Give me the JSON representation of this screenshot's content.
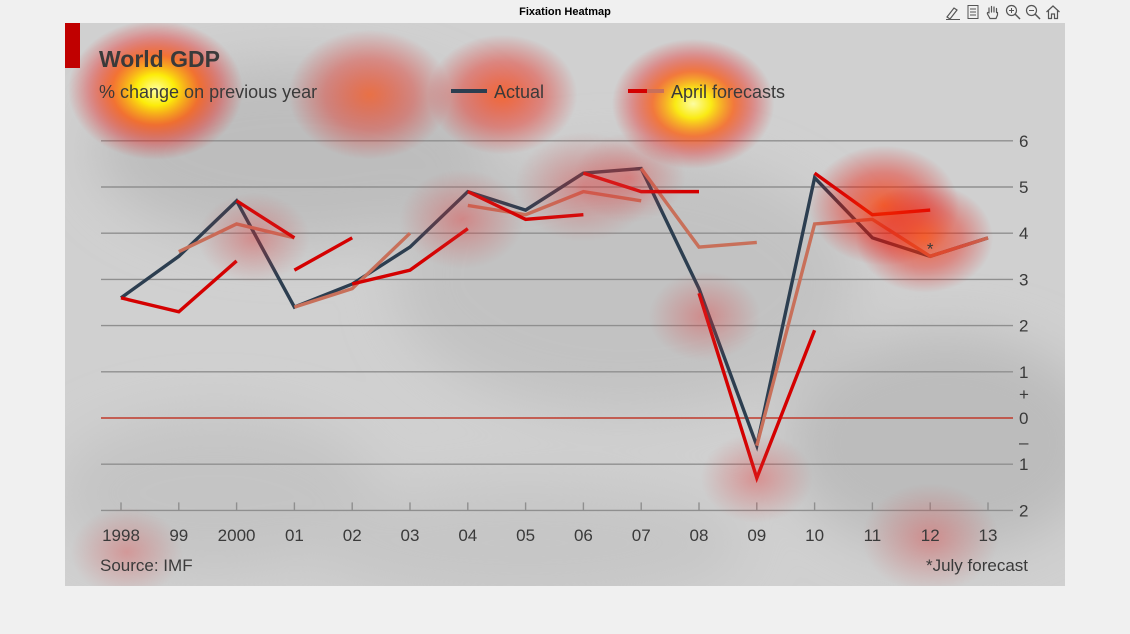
{
  "window": {
    "title": "Fixation Heatmap"
  },
  "toolbar": {
    "tools": [
      {
        "name": "edit-plot-icon"
      },
      {
        "name": "insert-legend-icon"
      },
      {
        "name": "pan-hand-icon"
      },
      {
        "name": "zoom-in-icon"
      },
      {
        "name": "zoom-out-icon"
      },
      {
        "name": "home-icon"
      }
    ]
  },
  "chart_data": {
    "type": "line",
    "title": "World GDP",
    "subtitle": "% change on previous year",
    "source": "Source: IMF",
    "footnote": "*July forecast",
    "x_labels": [
      "1998",
      "99",
      "2000",
      "01",
      "02",
      "03",
      "04",
      "05",
      "06",
      "07",
      "08",
      "09",
      "10",
      "11",
      "12",
      "13"
    ],
    "ylim": [
      -2,
      6
    ],
    "y_ticks": [
      {
        "value": 6,
        "label": "6"
      },
      {
        "value": 5,
        "label": "5"
      },
      {
        "value": 4,
        "label": "4"
      },
      {
        "value": 3,
        "label": "3"
      },
      {
        "value": 2,
        "label": "2"
      },
      {
        "value": 1,
        "label": "1"
      },
      {
        "value": 0,
        "label": "0"
      },
      {
        "value": -1,
        "label": "1"
      },
      {
        "value": -2,
        "label": "2"
      }
    ],
    "sign_labels": {
      "plus": "+",
      "minus": "–"
    },
    "legend": {
      "actual": "Actual",
      "forecast": "April forecasts"
    },
    "colors": {
      "actual": "#2c3e50",
      "forecast": "#d40000",
      "forecast_july": "#c8705a",
      "zero_line": "#c0392b",
      "accent": "#c00000",
      "background": "#d0d0d0"
    },
    "series": [
      {
        "name": "Actual",
        "years": [
          1998,
          1999,
          2000,
          2001,
          2002,
          2003,
          2004,
          2005,
          2006,
          2007,
          2008,
          2009,
          2010,
          2011,
          2012,
          2013
        ],
        "values": [
          2.6,
          3.5,
          4.7,
          2.4,
          2.9,
          3.7,
          4.9,
          4.5,
          5.3,
          5.4,
          2.8,
          -0.6,
          5.2,
          3.9,
          3.5,
          3.9
        ]
      },
      {
        "name": "April forecasts",
        "segments": [
          {
            "years": [
              1998,
              1999,
              2000
            ],
            "values": [
              2.6,
              2.3,
              3.4
            ]
          },
          {
            "years": [
              2000,
              2001
            ],
            "values": [
              4.7,
              3.9
            ]
          },
          {
            "years": [
              2001,
              2002
            ],
            "values": [
              3.2,
              3.9
            ]
          },
          {
            "years": [
              2002,
              2003,
              2004
            ],
            "values": [
              2.9,
              3.2,
              4.1
            ]
          },
          {
            "years": [
              2004,
              2005,
              2006
            ],
            "values": [
              4.9,
              4.3,
              4.4
            ]
          },
          {
            "years": [
              2006,
              2007,
              2008
            ],
            "values": [
              5.3,
              4.9,
              4.9
            ]
          },
          {
            "years": [
              2008,
              2009,
              2010
            ],
            "values": [
              2.7,
              -1.3,
              1.9
            ]
          },
          {
            "years": [
              2010,
              2011,
              2012
            ],
            "values": [
              5.3,
              4.4,
              4.5
            ]
          }
        ]
      },
      {
        "name": "*July forecast",
        "segments": [
          {
            "years": [
              1999,
              2000,
              2001
            ],
            "values": [
              3.6,
              4.2,
              3.9
            ]
          },
          {
            "years": [
              2001,
              2002,
              2003
            ],
            "values": [
              2.4,
              2.8,
              4.0
            ]
          },
          {
            "years": [
              2004,
              2005,
              2006,
              2007
            ],
            "values": [
              4.6,
              4.4,
              4.9,
              4.7
            ]
          },
          {
            "years": [
              2007,
              2008,
              2009
            ],
            "values": [
              5.4,
              3.7,
              3.8
            ]
          },
          {
            "years": [
              2009,
              2010,
              2011,
              2012,
              2013
            ],
            "values": [
              -0.6,
              4.2,
              4.3,
              3.5,
              3.9
            ]
          }
        ]
      }
    ],
    "annotation": {
      "year": 2012,
      "value": 3.8,
      "text": "*"
    },
    "heatmap_fixations": [
      {
        "year": 1998.6,
        "value": 7.1,
        "intensity": 1.0,
        "radius": 70
      },
      {
        "year": 2002.3,
        "value": 7.0,
        "intensity": 0.55,
        "radius": 65
      },
      {
        "year": 2004.6,
        "value": 7.0,
        "intensity": 0.75,
        "radius": 60
      },
      {
        "year": 2007.9,
        "value": 6.8,
        "intensity": 0.9,
        "radius": 65
      },
      {
        "year": 2011.2,
        "value": 4.6,
        "intensity": 0.8,
        "radius": 60
      },
      {
        "year": 2011.9,
        "value": 3.9,
        "intensity": 0.7,
        "radius": 55
      },
      {
        "year": 2000.3,
        "value": 3.9,
        "intensity": 0.35,
        "radius": 45
      },
      {
        "year": 2003.9,
        "value": 4.3,
        "intensity": 0.4,
        "radius": 50
      },
      {
        "year": 2006.0,
        "value": 5.0,
        "intensity": 0.4,
        "radius": 55
      },
      {
        "year": 2006.8,
        "value": 5.2,
        "intensity": 0.4,
        "radius": 45
      },
      {
        "year": 2008.1,
        "value": 2.2,
        "intensity": 0.35,
        "radius": 45
      },
      {
        "year": 2009.0,
        "value": -1.3,
        "intensity": 0.35,
        "radius": 45
      },
      {
        "year": 2012.0,
        "value": -2.6,
        "intensity": 0.3,
        "radius": 55
      },
      {
        "year": 1998.1,
        "value": -2.9,
        "intensity": 0.15,
        "radius": 45
      }
    ]
  }
}
